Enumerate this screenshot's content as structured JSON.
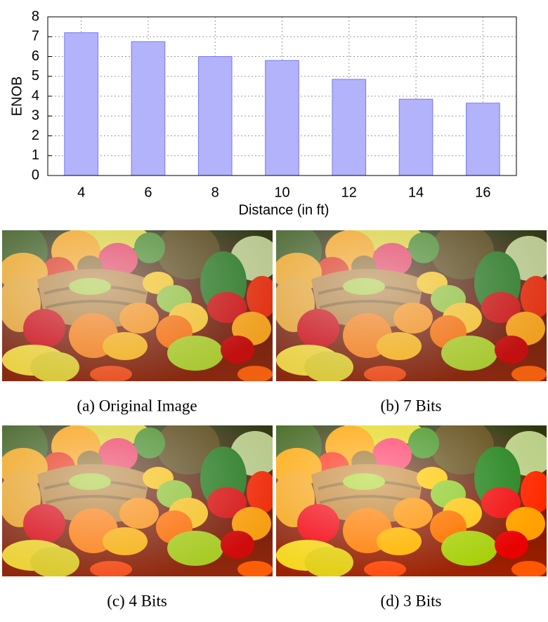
{
  "chart_data": {
    "type": "bar",
    "ylabel": "ENOB",
    "xlabel": "Distance (in ft)",
    "categories": [
      "4",
      "6",
      "8",
      "10",
      "12",
      "14",
      "16"
    ],
    "values": [
      7.2,
      6.75,
      6.0,
      5.8,
      4.85,
      3.85,
      3.65
    ],
    "color": "#b3b3fb",
    "edgecolor": "#7777ee",
    "ylim": [
      0,
      8
    ],
    "yticks": [
      0,
      1,
      2,
      3,
      4,
      5,
      6,
      7,
      8
    ],
    "grid": true
  },
  "figures": [
    {
      "caption": "(a) Original Image"
    },
    {
      "caption": "(b) 7 Bits"
    },
    {
      "caption": "(c) 4 Bits"
    },
    {
      "caption": "(d) 3 Bits"
    }
  ]
}
